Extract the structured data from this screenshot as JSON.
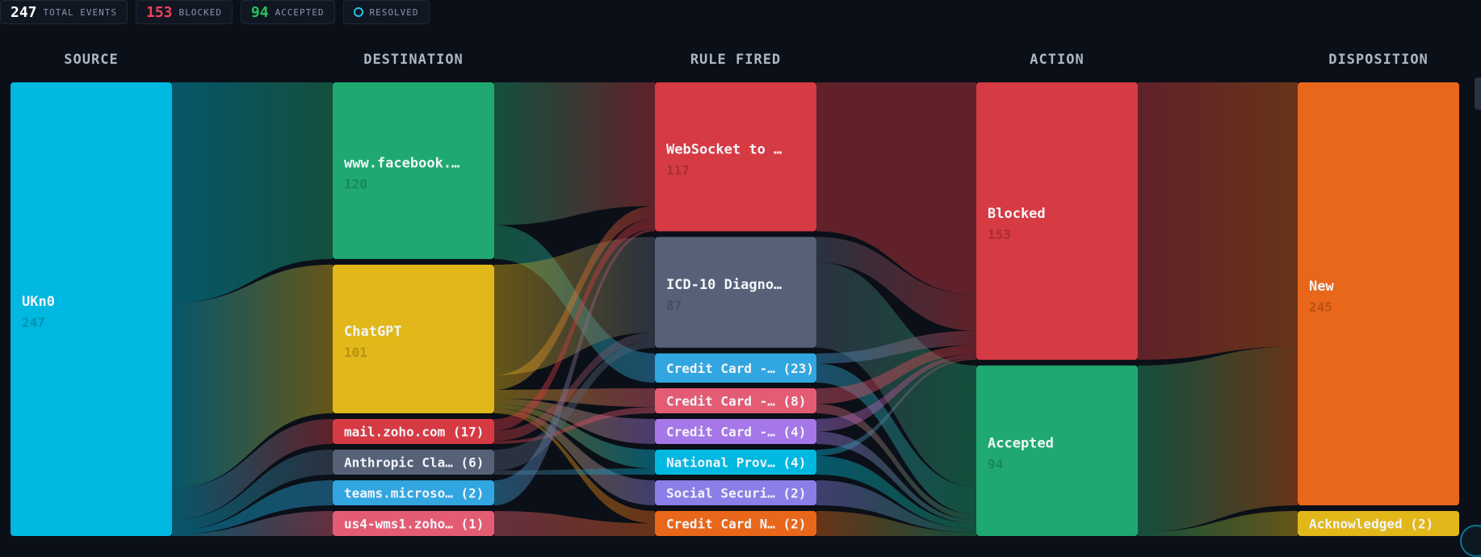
{
  "stats": [
    {
      "value": "247",
      "label": "TOTAL EVENTS",
      "color": "#ffffff"
    },
    {
      "value": "153",
      "label": "BLOCKED",
      "color": "#f43f5e"
    },
    {
      "value": "94",
      "label": "ACCEPTED",
      "color": "#22c55e"
    },
    {
      "value": "",
      "label": "RESOLVED",
      "color": "#22c3e6",
      "icon": "ring-icon"
    }
  ],
  "chart_data": {
    "type": "sankey",
    "columns": [
      "SOURCE",
      "DESTINATION",
      "RULE FIRED",
      "ACTION",
      "DISPOSITION"
    ],
    "nodes": [
      {
        "id": "ukn0",
        "col": 0,
        "label": "UKn0",
        "value": 247,
        "color": "#00b8e0"
      },
      {
        "id": "fb",
        "col": 1,
        "label": "www.facebook.…",
        "value": 120,
        "color": "#1fa971"
      },
      {
        "id": "gpt",
        "col": 1,
        "label": "ChatGPT",
        "value": 101,
        "color": "#e2b719"
      },
      {
        "id": "zoho",
        "col": 1,
        "label": "mail.zoho.com",
        "value": 17,
        "color": "#d63a43"
      },
      {
        "id": "anth",
        "col": 1,
        "label": "Anthropic Cla…",
        "value": 6,
        "color": "#566177"
      },
      {
        "id": "teams",
        "col": 1,
        "label": "teams.microso…",
        "value": 2,
        "color": "#32a6e0"
      },
      {
        "id": "us4",
        "col": 1,
        "label": "us4-wms1.zoho…",
        "value": 1,
        "color": "#e35c74"
      },
      {
        "id": "ws",
        "col": 2,
        "label": "WebSocket to …",
        "value": 117,
        "color": "#d63a43"
      },
      {
        "id": "icd",
        "col": 2,
        "label": "ICD-10 Diagno…",
        "value": 87,
        "color": "#566177"
      },
      {
        "id": "cc1",
        "col": 2,
        "label": "Credit Card -…",
        "value": 23,
        "color": "#32a6e0"
      },
      {
        "id": "cc2",
        "col": 2,
        "label": "Credit Card -…",
        "value": 8,
        "color": "#e35c74"
      },
      {
        "id": "cc3",
        "col": 2,
        "label": "Credit Card -…",
        "value": 4,
        "color": "#a577e8"
      },
      {
        "id": "npi",
        "col": 2,
        "label": "National Prov…",
        "value": 4,
        "color": "#00b8e0"
      },
      {
        "id": "ssn",
        "col": 2,
        "label": "Social Securi…",
        "value": 2,
        "color": "#8b7ee6"
      },
      {
        "id": "ccn",
        "col": 2,
        "label": "Credit Card N…",
        "value": 2,
        "color": "#e8671a"
      },
      {
        "id": "blocked",
        "col": 3,
        "label": "Blocked",
        "value": 153,
        "color": "#d63a43"
      },
      {
        "id": "accepted",
        "col": 3,
        "label": "Accepted",
        "value": 94,
        "color": "#1fa971"
      },
      {
        "id": "new",
        "col": 4,
        "label": "New",
        "value": 245,
        "color": "#e8671a"
      },
      {
        "id": "ack",
        "col": 4,
        "label": "Acknowledged",
        "value": 2,
        "color": "#e2b719"
      }
    ],
    "links": [
      {
        "source": "ukn0",
        "target": "fb",
        "value": 120
      },
      {
        "source": "ukn0",
        "target": "gpt",
        "value": 101
      },
      {
        "source": "ukn0",
        "target": "zoho",
        "value": 17
      },
      {
        "source": "ukn0",
        "target": "anth",
        "value": 6
      },
      {
        "source": "ukn0",
        "target": "teams",
        "value": 2
      },
      {
        "source": "ukn0",
        "target": "us4",
        "value": 1
      },
      {
        "source": "fb",
        "target": "ws",
        "value": 97
      },
      {
        "source": "fb",
        "target": "cc1",
        "value": 23
      },
      {
        "source": "gpt",
        "target": "icd",
        "value": 75
      },
      {
        "source": "gpt",
        "target": "ws",
        "value": 10
      },
      {
        "source": "gpt",
        "target": "cc2",
        "value": 6
      },
      {
        "source": "gpt",
        "target": "cc3",
        "value": 4
      },
      {
        "source": "gpt",
        "target": "npi",
        "value": 3
      },
      {
        "source": "gpt",
        "target": "ssn",
        "value": 2
      },
      {
        "source": "gpt",
        "target": "ccn",
        "value": 1
      },
      {
        "source": "zoho",
        "target": "ws",
        "value": 8
      },
      {
        "source": "zoho",
        "target": "icd",
        "value": 7
      },
      {
        "source": "zoho",
        "target": "cc2",
        "value": 2
      },
      {
        "source": "anth",
        "target": "icd",
        "value": 5
      },
      {
        "source": "anth",
        "target": "npi",
        "value": 1
      },
      {
        "source": "teams",
        "target": "ws",
        "value": 2
      },
      {
        "source": "us4",
        "target": "ccn",
        "value": 1
      },
      {
        "source": "ws",
        "target": "blocked",
        "value": 117
      },
      {
        "source": "icd",
        "target": "blocked",
        "value": 20
      },
      {
        "source": "icd",
        "target": "accepted",
        "value": 67
      },
      {
        "source": "cc1",
        "target": "blocked",
        "value": 8
      },
      {
        "source": "cc1",
        "target": "accepted",
        "value": 15
      },
      {
        "source": "cc2",
        "target": "blocked",
        "value": 5
      },
      {
        "source": "cc2",
        "target": "accepted",
        "value": 3
      },
      {
        "source": "cc3",
        "target": "blocked",
        "value": 2
      },
      {
        "source": "cc3",
        "target": "accepted",
        "value": 2
      },
      {
        "source": "npi",
        "target": "blocked",
        "value": 1
      },
      {
        "source": "npi",
        "target": "accepted",
        "value": 3
      },
      {
        "source": "ssn",
        "target": "accepted",
        "value": 2
      },
      {
        "source": "ccn",
        "target": "accepted",
        "value": 2
      },
      {
        "source": "blocked",
        "target": "new",
        "value": 153
      },
      {
        "source": "accepted",
        "target": "new",
        "value": 92
      },
      {
        "source": "accepted",
        "target": "ack",
        "value": 2
      }
    ]
  }
}
